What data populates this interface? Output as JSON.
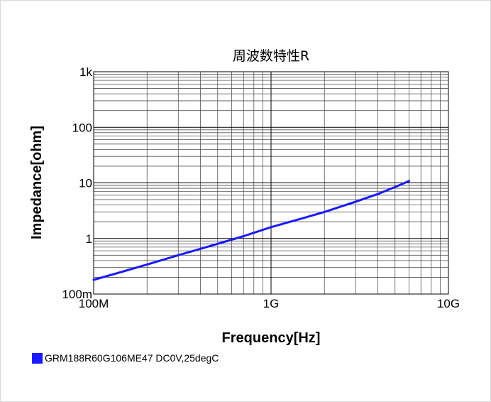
{
  "chart_data": {
    "type": "line",
    "title": "周波数特性R",
    "xlabel": "Frequency[Hz]",
    "ylabel": "Impedance[ohm]",
    "xscale": "log",
    "yscale": "log",
    "xlim": [
      100000000,
      10000000000
    ],
    "ylim": [
      0.1,
      1000
    ],
    "grid": true,
    "legend_position": "bottom-left",
    "x_ticks": [
      {
        "value": 100000000,
        "label": "100M"
      },
      {
        "value": 1000000000,
        "label": "1G"
      },
      {
        "value": 10000000000,
        "label": "10G"
      }
    ],
    "y_ticks": [
      {
        "value": 0.1,
        "label": "100m"
      },
      {
        "value": 1,
        "label": "1"
      },
      {
        "value": 10,
        "label": "10"
      },
      {
        "value": 100,
        "label": "100"
      },
      {
        "value": 1000,
        "label": "1k"
      }
    ],
    "series": [
      {
        "name": "GRM188R60G106ME47 DC0V,25degC",
        "color": "#1a1aff",
        "x": [
          100000000,
          150000000,
          200000000,
          300000000,
          500000000,
          700000000,
          1000000000,
          1500000000,
          2000000000,
          3000000000,
          4000000000,
          5000000000,
          6000000000
        ],
        "y": [
          0.18,
          0.26,
          0.34,
          0.5,
          0.8,
          1.1,
          1.6,
          2.3,
          3.0,
          4.6,
          6.3,
          8.4,
          10.8
        ]
      }
    ]
  }
}
